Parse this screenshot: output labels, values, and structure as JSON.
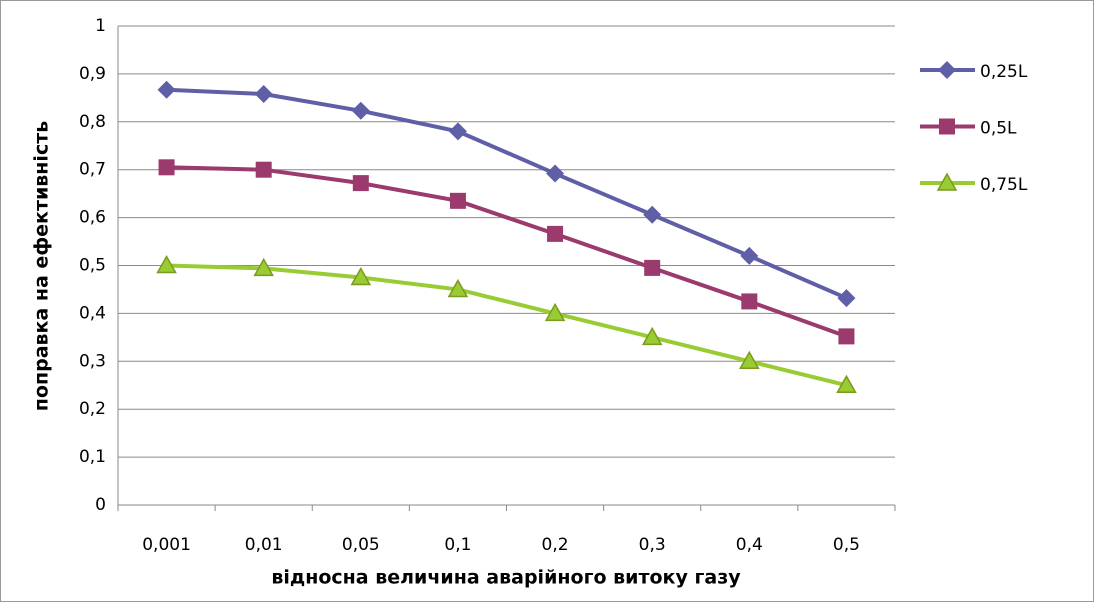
{
  "chart_data": {
    "type": "line",
    "x_label": "відносна величина аварійного витоку газу",
    "y_label": "поправка на ефективність",
    "categories": [
      "0,001",
      "0,01",
      "0,05",
      "0,1",
      "0,2",
      "0,3",
      "0,4",
      "0,5"
    ],
    "series": [
      {
        "name": "0,25L",
        "color": "#5f5fa8",
        "marker": "diamond",
        "values": [
          0.867,
          0.858,
          0.823,
          0.78,
          0.692,
          0.606,
          0.52,
          0.432
        ]
      },
      {
        "name": "0,5L",
        "color": "#9b3a6c",
        "marker": "square",
        "values": [
          0.705,
          0.7,
          0.672,
          0.635,
          0.566,
          0.495,
          0.425,
          0.352
        ]
      },
      {
        "name": "0,75L",
        "color": "#99cc33",
        "marker": "triangle",
        "values": [
          0.5,
          0.494,
          0.475,
          0.45,
          0.4,
          0.35,
          0.3,
          0.25
        ]
      }
    ],
    "ylim": [
      0,
      1
    ],
    "yticks": [
      0,
      {
        "value": 0.1,
        "label": "0,1"
      },
      {
        "value": 0.2,
        "label": "0,2"
      },
      {
        "value": 0.3,
        "label": "0,3"
      },
      {
        "value": 0.4,
        "label": "0,4"
      },
      {
        "value": 0.5,
        "label": "0,5"
      },
      {
        "value": 0.6,
        "label": "0,6"
      },
      {
        "value": 0.7,
        "label": "0,7"
      },
      {
        "value": 0.8,
        "label": "0,8"
      },
      {
        "value": 0.9,
        "label": "0,9"
      },
      1
    ],
    "grid": true,
    "legend": "right"
  }
}
